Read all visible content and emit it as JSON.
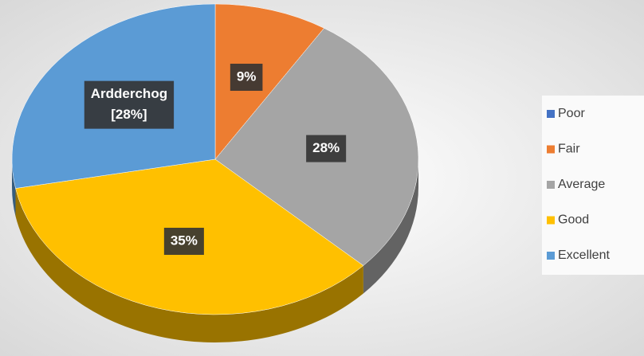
{
  "chart_data": {
    "type": "pie",
    "categories": [
      "Poor",
      "Fair",
      "Average",
      "Good",
      "Excellent"
    ],
    "values": [
      0,
      9,
      28,
      35,
      28
    ],
    "value_labels": [
      null,
      "9%",
      "28%",
      "35%",
      "[28%]"
    ],
    "slice_names": [
      null,
      null,
      null,
      null,
      "Ardderchog"
    ],
    "colors": [
      "#4472c4",
      "#ed7d31",
      "#a5a5a5",
      "#ffc000",
      "#5b9bd5"
    ],
    "legend": "right"
  }
}
